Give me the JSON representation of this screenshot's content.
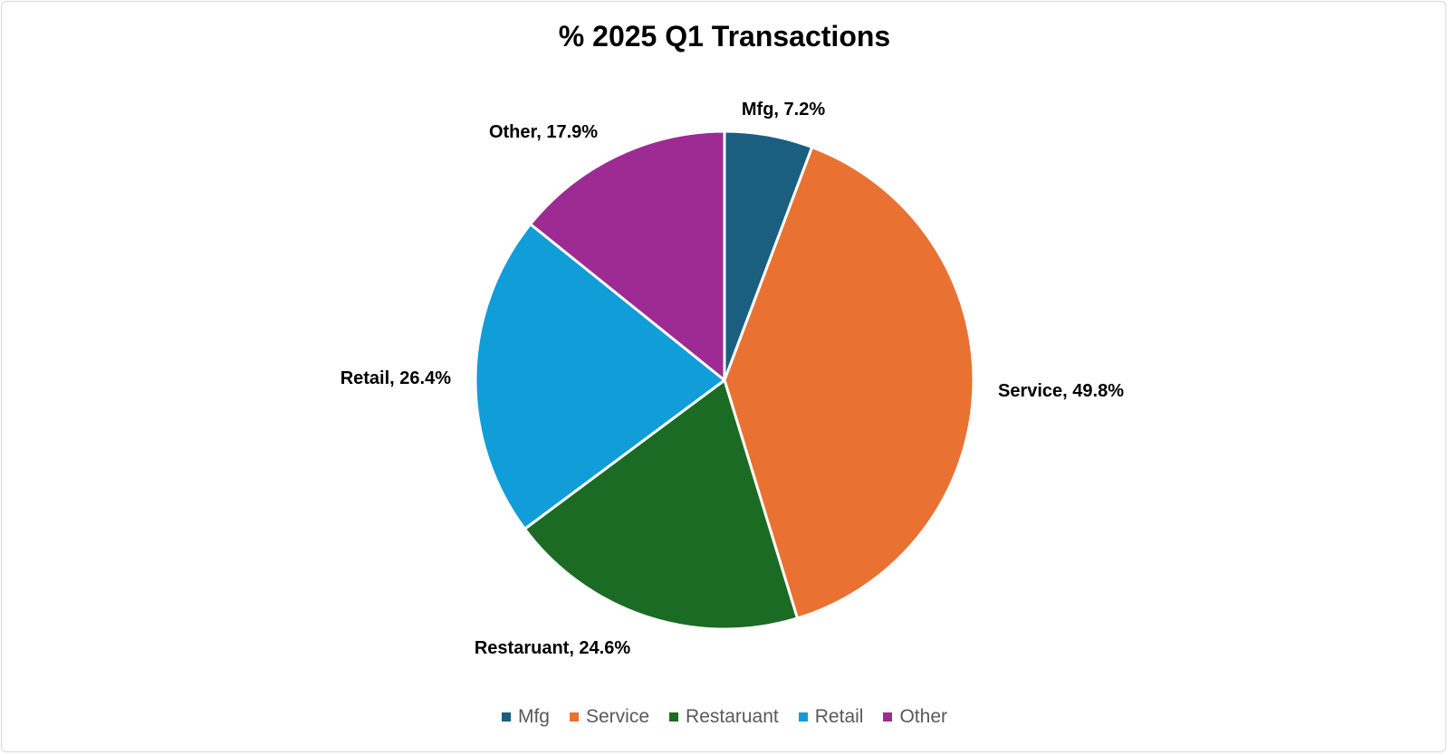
{
  "chart_data": {
    "type": "pie",
    "title": "% 2025 Q1 Transactions",
    "categories": [
      "Mfg",
      "Service",
      "Restaruant",
      "Retail",
      "Other"
    ],
    "values": [
      7.2,
      49.8,
      24.6,
      26.4,
      17.9
    ],
    "data_labels": [
      "Mfg, 7.2%",
      "Service, 49.8%",
      "Restaruant, 24.6%",
      "Retail, 26.4%",
      "Other, 17.9%"
    ],
    "colors": [
      "#1a5e80",
      "#e97132",
      "#1b6b25",
      "#109dd8",
      "#9e2b93"
    ],
    "legend_position": "bottom",
    "start_angle_deg": 0,
    "direction": "clockwise"
  }
}
